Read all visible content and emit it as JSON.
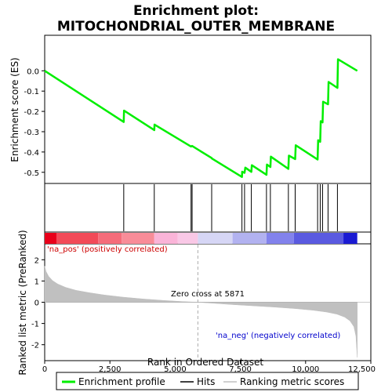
{
  "chart_data": {
    "type": "line",
    "title": "Enrichment plot:\nMITOCHONDRIAL_OUTER_MEMBRANE",
    "title_lines": [
      "Enrichment plot:",
      "MITOCHONDRIAL_OUTER_MEMBRANE"
    ],
    "xlabel": "Rank in Ordered Dataset",
    "xlim": [
      0,
      12500
    ],
    "x_ticks": [
      0,
      2500,
      5000,
      7500,
      10000,
      12500
    ],
    "x_tick_labels": [
      "0",
      "2,500",
      "5,000",
      "7,500",
      "10,000",
      "12,500"
    ],
    "enrichment_panel": {
      "ylabel": "Enrichment score (ES)",
      "ylim": [
        -0.555,
        0.175
      ],
      "y_ticks": [
        0.0,
        -0.1,
        -0.2,
        -0.3,
        -0.4,
        -0.5
      ],
      "y_tick_labels": [
        "0.0",
        "-0.1",
        "-0.2",
        "-0.3",
        "-0.4",
        "-0.5"
      ],
      "grid": false,
      "series": [
        {
          "name": "Enrichment profile",
          "color": "#00ee00",
          "x": [
            0,
            3030,
            3040,
            4200,
            4210,
            5610,
            5650,
            5670,
            6400,
            6410,
            7560,
            7570,
            7660,
            7690,
            7920,
            7940,
            8500,
            8520,
            8650,
            8670,
            9340,
            9360,
            9600,
            9620,
            10460,
            10480,
            10560,
            10580,
            10650,
            10670,
            10860,
            10880,
            11220,
            11240,
            11980
          ],
          "y": [
            0.0,
            -0.252,
            -0.196,
            -0.292,
            -0.265,
            -0.373,
            -0.37,
            -0.372,
            -0.43,
            -0.432,
            -0.523,
            -0.497,
            -0.503,
            -0.477,
            -0.498,
            -0.465,
            -0.512,
            -0.462,
            -0.474,
            -0.423,
            -0.483,
            -0.418,
            -0.435,
            -0.367,
            -0.437,
            -0.342,
            -0.35,
            -0.248,
            -0.254,
            -0.152,
            -0.165,
            -0.055,
            -0.084,
            0.057,
            0.0
          ]
        }
      ]
    },
    "hits": {
      "name": "Hits",
      "color": "#000000",
      "x": [
        3030,
        4200,
        5610,
        5650,
        6400,
        7560,
        7660,
        7920,
        8500,
        8650,
        9340,
        9600,
        10460,
        10560,
        10650,
        10860,
        11220
      ]
    },
    "heatmap_bar": {
      "segments": [
        {
          "from": 0,
          "to": 450,
          "color": "#e8001a"
        },
        {
          "from": 450,
          "to": 2050,
          "color": "#f24a58"
        },
        {
          "from": 2050,
          "to": 2950,
          "color": "#f56c7a"
        },
        {
          "from": 2950,
          "to": 4200,
          "color": "#f88c98"
        },
        {
          "from": 4200,
          "to": 5100,
          "color": "#fab4d8"
        },
        {
          "from": 5100,
          "to": 5871,
          "color": "#f9c8e6"
        },
        {
          "from": 5871,
          "to": 7200,
          "color": "#d6d6f5"
        },
        {
          "from": 7200,
          "to": 8500,
          "color": "#b2b2f0"
        },
        {
          "from": 8500,
          "to": 9550,
          "color": "#8282ec"
        },
        {
          "from": 9550,
          "to": 11450,
          "color": "#5a5ae0"
        },
        {
          "from": 11450,
          "to": 11980,
          "color": "#1a1ad2"
        }
      ]
    },
    "ranked_panel": {
      "ylabel": "Ranked list metric (PreRanked)",
      "ylim": [
        -2.75,
        2.75
      ],
      "y_ticks": [
        2,
        1,
        0,
        -1,
        -2
      ],
      "y_tick_labels": [
        "2",
        "1",
        "0",
        "-1",
        "-2"
      ],
      "series": [
        {
          "name": "Ranking metric scores",
          "color": "#c0c0c0",
          "x": [
            0,
            50,
            150,
            300,
            500,
            800,
            1200,
            1700,
            2300,
            3000,
            3800,
            4600,
            5300,
            5871,
            6500,
            7200,
            8000,
            8800,
            9600,
            10300,
            10800,
            11200,
            11500,
            11700,
            11850,
            11930,
            11980
          ],
          "y": [
            1.7,
            1.45,
            1.22,
            1.02,
            0.86,
            0.7,
            0.56,
            0.45,
            0.34,
            0.24,
            0.15,
            0.08,
            0.03,
            0.0,
            -0.05,
            -0.11,
            -0.17,
            -0.23,
            -0.3,
            -0.38,
            -0.46,
            -0.56,
            -0.7,
            -0.88,
            -1.15,
            -1.6,
            -2.6
          ]
        }
      ],
      "zero_cross_x": 5871,
      "annotations": {
        "positive": "'na_pos' (positively correlated)",
        "negative": "'na_neg' (negatively correlated)",
        "zero_cross": "Zero cross at 5871"
      }
    },
    "legend": {
      "placement": "bottom",
      "entries": [
        "Enrichment profile",
        "Hits",
        "Ranking metric scores"
      ]
    }
  }
}
